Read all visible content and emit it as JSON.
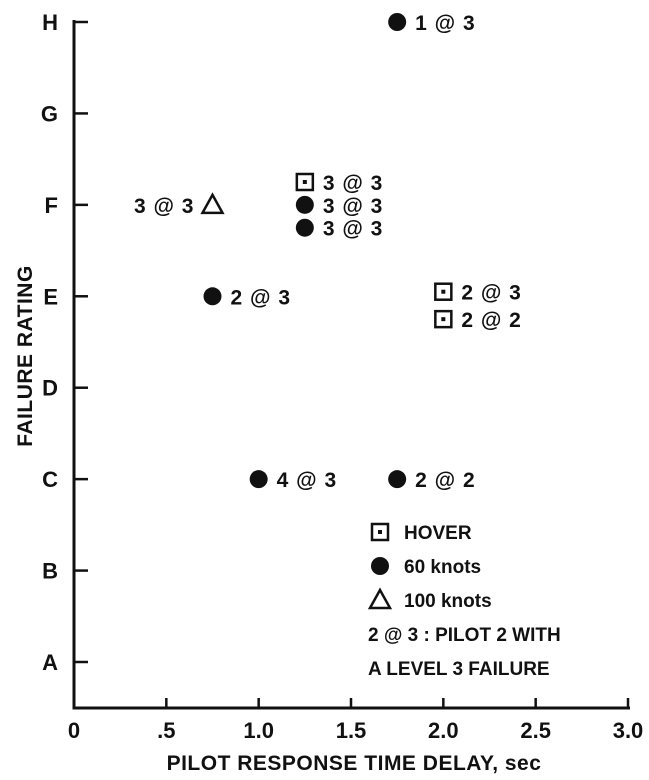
{
  "chart_data": {
    "type": "scatter",
    "xlabel": "PILOT RESPONSE TIME DELAY, sec",
    "ylabel": "FAILURE RATING",
    "xlim": [
      0,
      3.0
    ],
    "x_ticks": [
      {
        "value": 0,
        "label": "0"
      },
      {
        "value": 0.5,
        "label": ".5"
      },
      {
        "value": 1.0,
        "label": "1.0"
      },
      {
        "value": 1.5,
        "label": "1.5"
      },
      {
        "value": 2.0,
        "label": "2.0"
      },
      {
        "value": 2.5,
        "label": "2.5"
      },
      {
        "value": 3.0,
        "label": "3.0"
      }
    ],
    "y_categories": [
      "A",
      "B",
      "C",
      "D",
      "E",
      "F",
      "G",
      "H"
    ],
    "points": [
      {
        "series": "60 knots",
        "x": 1.75,
        "y": 8.0,
        "label": "1 @ 3",
        "label_side": "right"
      },
      {
        "series": "HOVER",
        "x": 1.25,
        "y": 6.25,
        "label": "3 @ 3",
        "label_side": "right"
      },
      {
        "series": "60 knots",
        "x": 1.25,
        "y": 6.0,
        "label": "3 @ 3",
        "label_side": "right"
      },
      {
        "series": "60 knots",
        "x": 1.25,
        "y": 5.75,
        "label": "3 @ 3",
        "label_side": "right"
      },
      {
        "series": "100 knots",
        "x": 0.75,
        "y": 6.0,
        "label": "3 @ 3",
        "label_side": "left"
      },
      {
        "series": "60 knots",
        "x": 0.75,
        "y": 5.0,
        "label": "2 @ 3",
        "label_side": "right"
      },
      {
        "series": "HOVER",
        "x": 2.0,
        "y": 5.05,
        "label": "2 @ 3",
        "label_side": "right"
      },
      {
        "series": "HOVER",
        "x": 2.0,
        "y": 4.75,
        "label": "2 @ 2",
        "label_side": "right"
      },
      {
        "series": "60 knots",
        "x": 1.0,
        "y": 3.0,
        "label": "4 @ 3",
        "label_side": "right"
      },
      {
        "series": "60 knots",
        "x": 1.75,
        "y": 3.0,
        "label": "2 @ 2",
        "label_side": "right"
      }
    ],
    "legend": {
      "placement": "bottom-right",
      "entries": [
        {
          "marker": "open-square",
          "label": "HOVER"
        },
        {
          "marker": "filled-circle",
          "label": "60 knots"
        },
        {
          "marker": "open-triangle",
          "label": "100 knots"
        }
      ],
      "note_lines": [
        "2 @ 3 : PILOT 2 WITH",
        "A LEVEL 3 FAILURE"
      ]
    },
    "grid": false,
    "colors": {
      "ink": "#111111",
      "background": "#ffffff"
    }
  }
}
